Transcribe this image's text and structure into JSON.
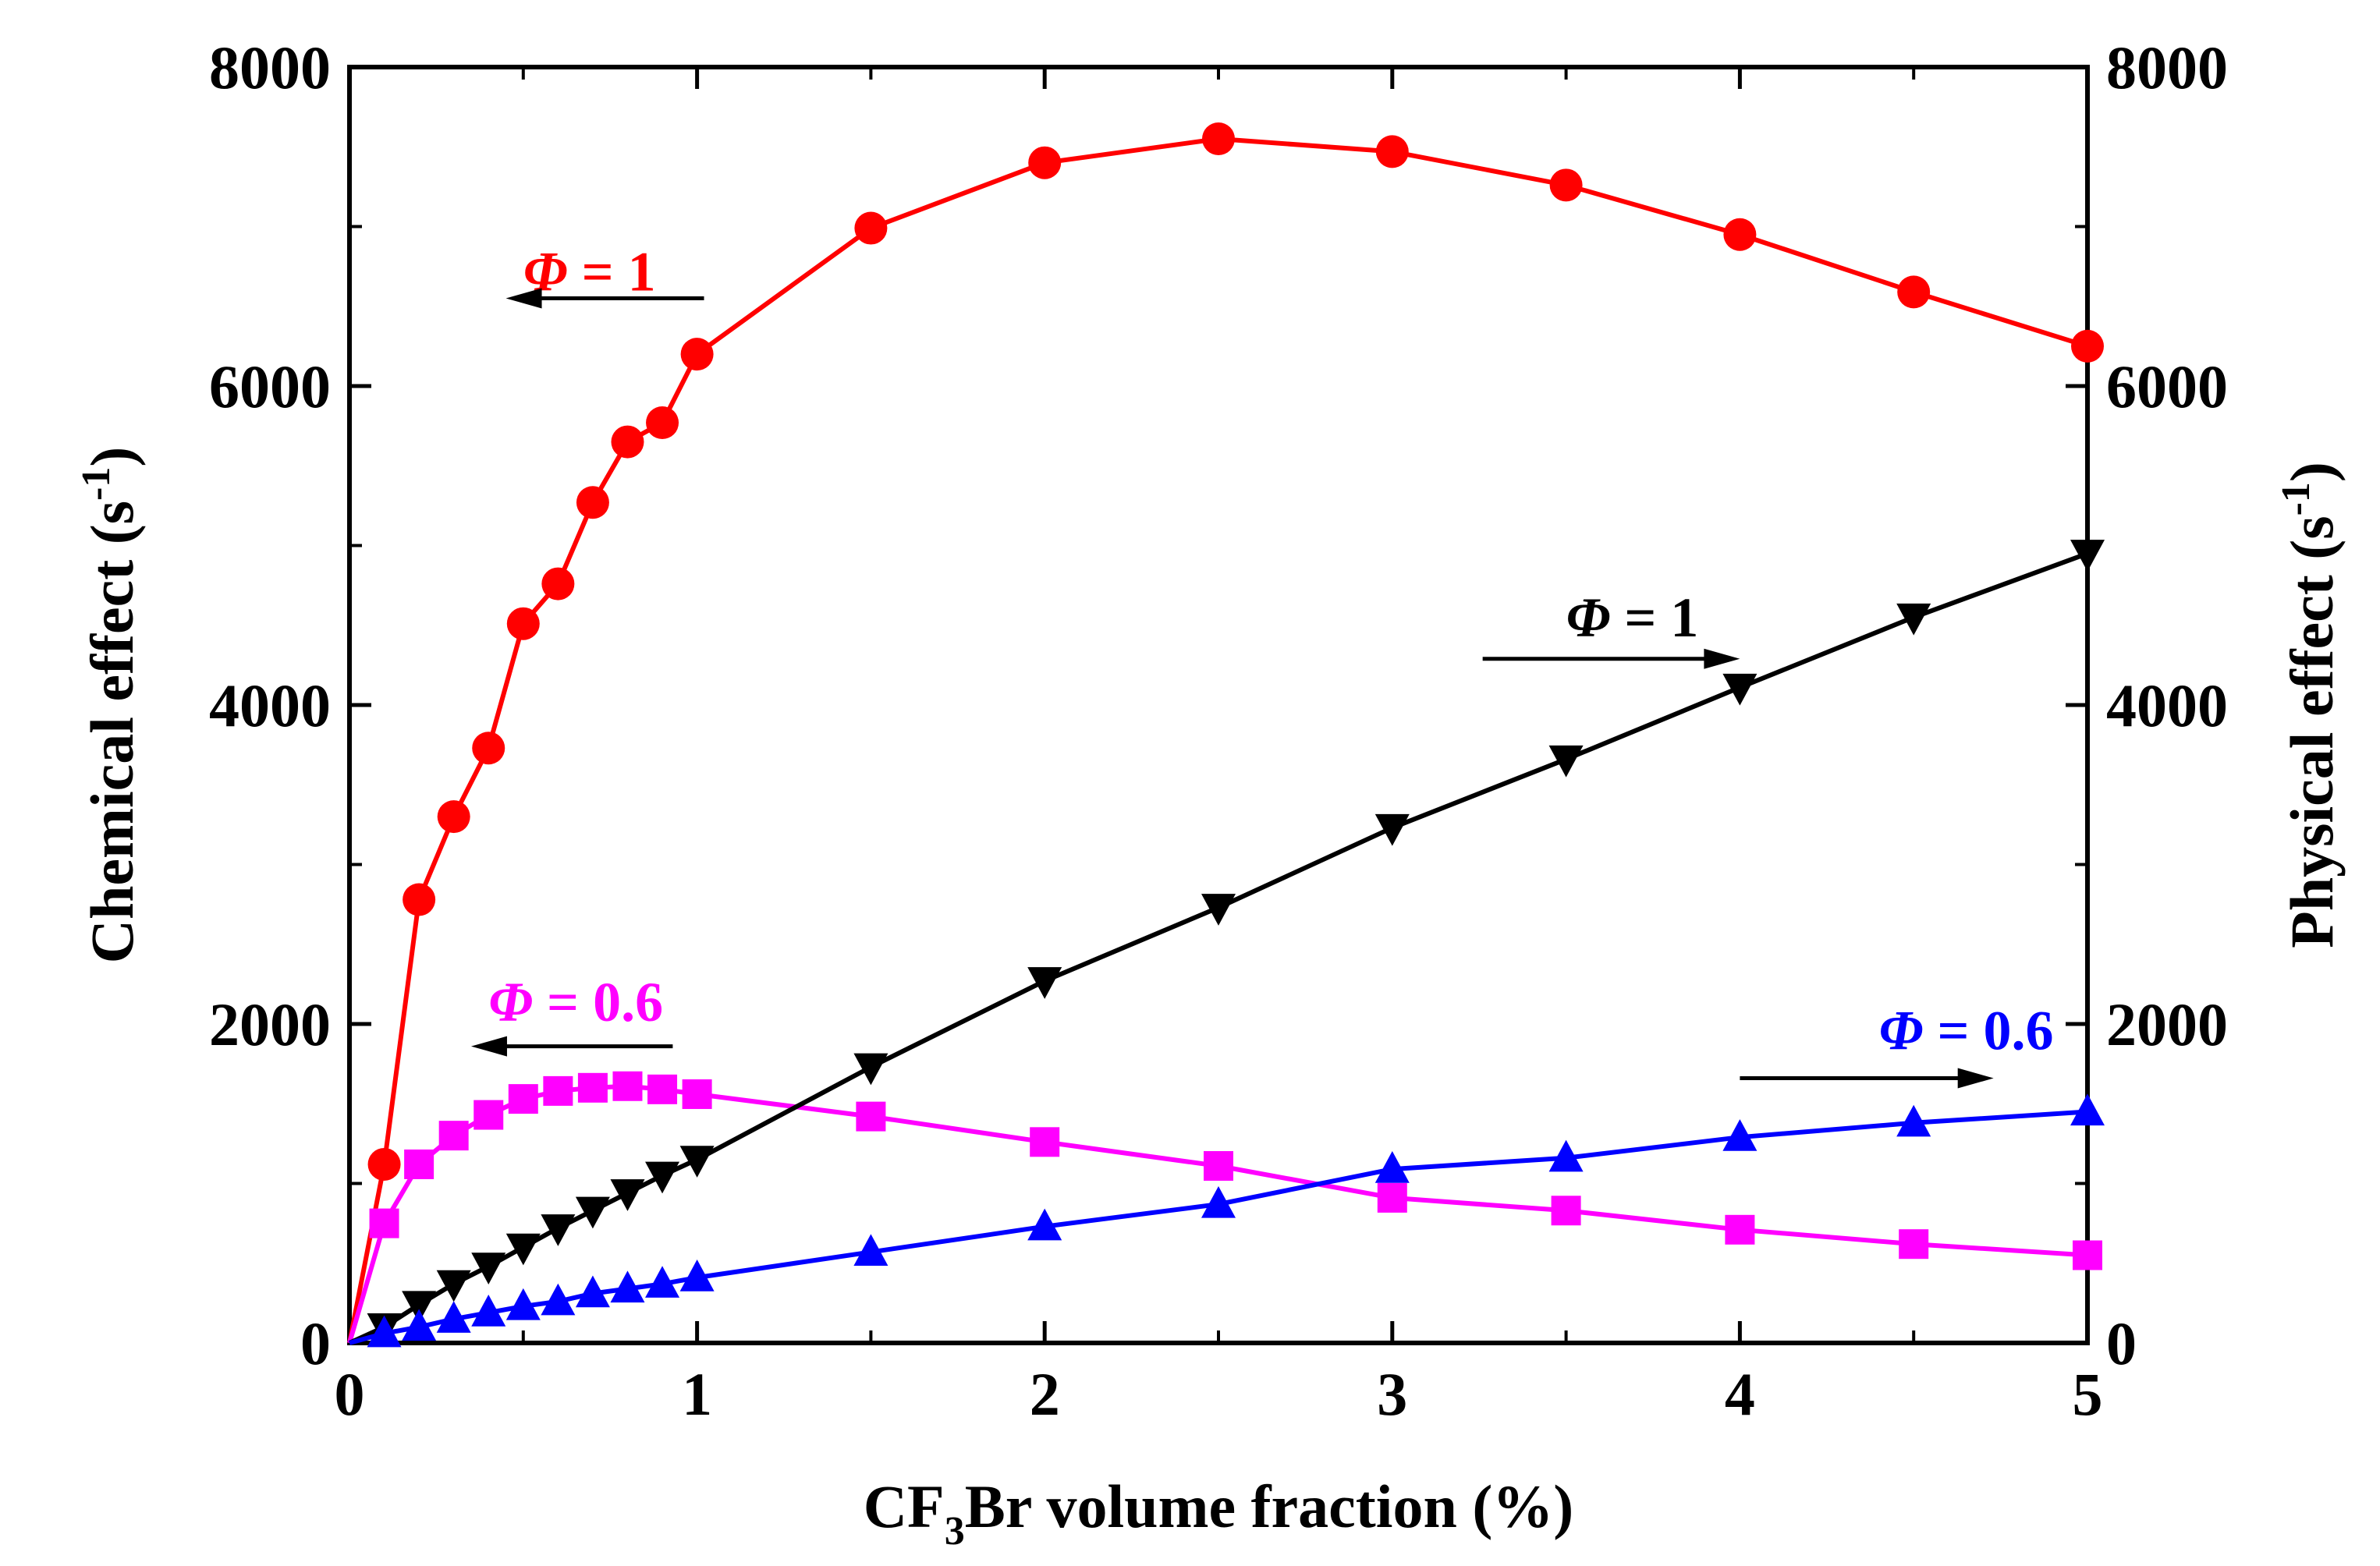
{
  "chart_data": {
    "type": "line",
    "xlabel": {
      "pre": "CF",
      "sub": "3",
      "post": "Br volume fraction (%)"
    },
    "ylabel_left": {
      "text": "Chemical effect (s",
      "sup": "-1",
      "close": ")"
    },
    "ylabel_right": {
      "text": "Physical effect (s",
      "sup": "-1",
      "close": ")"
    },
    "xlim": [
      0,
      5
    ],
    "ylim": [
      0,
      8000
    ],
    "x_ticks": [
      0,
      1,
      2,
      3,
      4,
      5
    ],
    "x_tick_labels": [
      "0",
      "1",
      "2",
      "3",
      "4",
      "5"
    ],
    "y_ticks": [
      0,
      2000,
      4000,
      6000,
      8000
    ],
    "y_tick_labels": [
      "0",
      "2000",
      "4000",
      "6000",
      "8000"
    ],
    "series": [
      {
        "name": "Chemical effect, Φ = 1",
        "axis": "left",
        "color": "#ff0000",
        "marker": "circle",
        "x": [
          0,
          0.1,
          0.2,
          0.3,
          0.4,
          0.5,
          0.6,
          0.7,
          0.8,
          0.9,
          1.0,
          1.5,
          2.0,
          2.5,
          3.0,
          3.5,
          4.0,
          4.5,
          5.0
        ],
        "y": [
          0,
          1120,
          2780,
          3300,
          3730,
          4510,
          4760,
          5270,
          5650,
          5770,
          6200,
          6990,
          7400,
          7550,
          7470,
          7260,
          6950,
          6590,
          6250
        ]
      },
      {
        "name": "Chemical effect, Φ = 0.6",
        "axis": "left",
        "color": "#ff00ff",
        "marker": "square",
        "x": [
          0,
          0.1,
          0.2,
          0.3,
          0.4,
          0.5,
          0.6,
          0.7,
          0.8,
          0.9,
          1.0,
          1.5,
          2.0,
          2.5,
          3.0,
          3.5,
          4.0,
          4.5,
          5.0
        ],
        "y": [
          0,
          750,
          1120,
          1300,
          1430,
          1530,
          1580,
          1600,
          1610,
          1590,
          1560,
          1420,
          1260,
          1110,
          910,
          830,
          710,
          620,
          550
        ]
      },
      {
        "name": "Physical effect, Φ = 1",
        "axis": "right",
        "color": "#000000",
        "marker": "triangle-down",
        "x": [
          0,
          0.1,
          0.2,
          0.3,
          0.4,
          0.5,
          0.6,
          0.7,
          0.8,
          0.9,
          1.0,
          1.5,
          2.0,
          2.5,
          3.0,
          3.5,
          4.0,
          4.5,
          5.0
        ],
        "y": [
          0,
          100,
          240,
          370,
          480,
          600,
          720,
          830,
          940,
          1050,
          1150,
          1730,
          2270,
          2730,
          3230,
          3660,
          4110,
          4550,
          4950
        ]
      },
      {
        "name": "Physical effect, Φ = 0.6",
        "axis": "right",
        "color": "#0000ff",
        "marker": "triangle-up",
        "x": [
          0,
          0.1,
          0.2,
          0.3,
          0.4,
          0.5,
          0.6,
          0.7,
          0.8,
          0.9,
          1.0,
          1.5,
          2.0,
          2.5,
          3.0,
          3.5,
          4.0,
          4.5,
          5.0
        ],
        "y": [
          0,
          60,
          100,
          150,
          190,
          230,
          260,
          310,
          340,
          370,
          410,
          570,
          730,
          870,
          1090,
          1160,
          1290,
          1380,
          1450
        ]
      }
    ],
    "annotations": [
      {
        "symbol": "Φ",
        "text": " = 1",
        "color": "#ff0000",
        "x": 0.5,
        "y": 6600,
        "arrow_from": 1.02,
        "arrow_to": 0.45,
        "arrow_y": 6550
      },
      {
        "symbol": "Φ",
        "text": " = 0.6",
        "color": "#ff00ff",
        "x": 0.4,
        "y": 2020,
        "arrow_from": 0.93,
        "arrow_to": 0.35,
        "arrow_y": 1860
      },
      {
        "symbol": "Φ",
        "text": " = 1",
        "color": "#000000",
        "x": 3.5,
        "y": 4430,
        "arrow_from": 3.26,
        "arrow_to": 4.0,
        "arrow_y": 4290
      },
      {
        "symbol": "Φ",
        "text": " = 0.6",
        "color": "#0000ff",
        "x": 4.4,
        "y": 1840,
        "arrow_from": 4.0,
        "arrow_to": 4.73,
        "arrow_y": 1660
      }
    ]
  }
}
